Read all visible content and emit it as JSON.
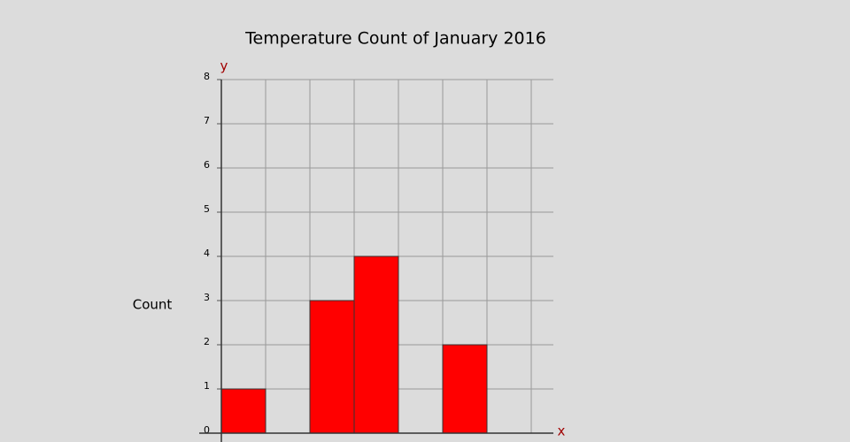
{
  "chart_data": {
    "type": "bar",
    "title": "Temperature Count of January 2016",
    "x_label": "x",
    "y_label": "y",
    "y_title": "Count",
    "categories": [
      null,
      null,
      null,
      null,
      null,
      null,
      null
    ],
    "values": [
      1,
      0,
      3,
      4,
      0,
      2,
      0
    ],
    "color": "#ff0000",
    "ylim": [
      0,
      8
    ],
    "yticks": [
      0,
      1,
      2,
      3,
      4,
      5,
      6,
      7,
      8
    ],
    "grid": true
  }
}
